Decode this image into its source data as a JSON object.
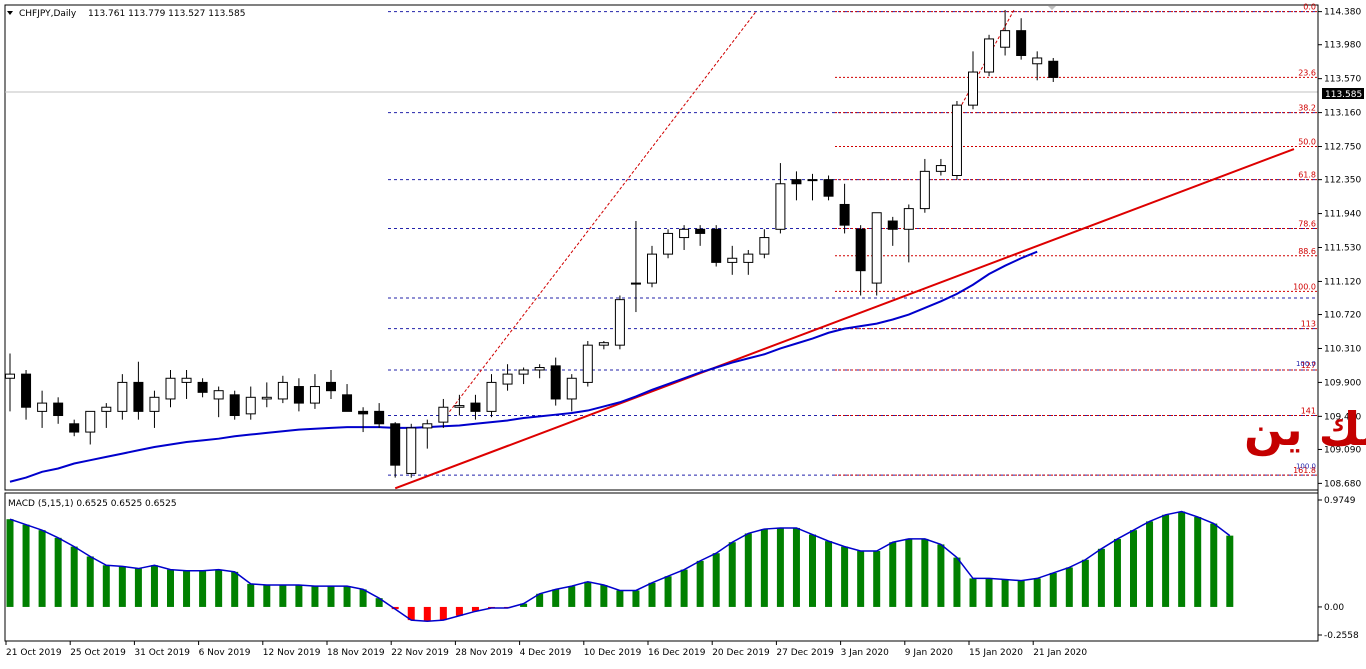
{
  "header": {
    "symbol": "CHFJPY,Daily",
    "ohlc": "113.761 113.779 113.527 113.585"
  },
  "watermark": "الفرنك ين",
  "macd_label": "MACD (5,15,1) 0.6525 0.6525 0.6525",
  "current_price_label": "113.585",
  "colors": {
    "background": "#ffffff",
    "bull_body": "#ffffff",
    "bear_body": "#000000",
    "moving_average": "#0000cc",
    "trendline": "#dd0000",
    "fib_lines": "#2222aa",
    "fib_labels": "#d00000",
    "macd_positive": "#008000",
    "macd_negative": "#ff0000",
    "macd_signal": "#0000cc"
  },
  "chart_data": [
    {
      "type": "candlestick",
      "title": "CHFJPY,Daily",
      "ylim": [
        108.6,
        114.46
      ],
      "y_ticks": [
        "114.380",
        "113.980",
        "113.570",
        "113.160",
        "112.750",
        "112.350",
        "111.940",
        "111.530",
        "111.120",
        "110.720",
        "110.310",
        "109.900",
        "109.490",
        "109.090",
        "108.680"
      ],
      "x_tick_labels": [
        "21 Oct 2019",
        "25 Oct 2019",
        "31 Oct 2019",
        "6 Nov 2019",
        "12 Nov 2019",
        "18 Nov 2019",
        "22 Nov 2019",
        "28 Nov 2019",
        "4 Dec 2019",
        "10 Dec 2019",
        "16 Dec 2019",
        "20 Dec 2019",
        "27 Dec 2019",
        "3 Jan 2020",
        "9 Jan 2020",
        "15 Jan 2020",
        "21 Jan 2020"
      ],
      "candles": [
        {
          "o": 109.95,
          "h": 110.25,
          "l": 109.55,
          "c": 110.0
        },
        {
          "o": 110.0,
          "h": 110.05,
          "l": 109.45,
          "c": 109.6
        },
        {
          "o": 109.55,
          "h": 109.8,
          "l": 109.35,
          "c": 109.65
        },
        {
          "o": 109.65,
          "h": 109.72,
          "l": 109.4,
          "c": 109.5
        },
        {
          "o": 109.4,
          "h": 109.45,
          "l": 109.25,
          "c": 109.3
        },
        {
          "o": 109.3,
          "h": 109.55,
          "l": 109.15,
          "c": 109.55
        },
        {
          "o": 109.55,
          "h": 109.65,
          "l": 109.35,
          "c": 109.6
        },
        {
          "o": 109.55,
          "h": 110.0,
          "l": 109.45,
          "c": 109.9
        },
        {
          "o": 109.9,
          "h": 110.15,
          "l": 109.45,
          "c": 109.55
        },
        {
          "o": 109.55,
          "h": 109.8,
          "l": 109.35,
          "c": 109.72
        },
        {
          "o": 109.7,
          "h": 110.05,
          "l": 109.6,
          "c": 109.95
        },
        {
          "o": 109.9,
          "h": 110.05,
          "l": 109.7,
          "c": 109.95
        },
        {
          "o": 109.9,
          "h": 109.95,
          "l": 109.72,
          "c": 109.78
        },
        {
          "o": 109.7,
          "h": 109.85,
          "l": 109.48,
          "c": 109.8
        },
        {
          "o": 109.75,
          "h": 109.8,
          "l": 109.45,
          "c": 109.5
        },
        {
          "o": 109.52,
          "h": 109.85,
          "l": 109.45,
          "c": 109.72
        },
        {
          "o": 109.7,
          "h": 109.9,
          "l": 109.6,
          "c": 109.72
        },
        {
          "o": 109.7,
          "h": 109.98,
          "l": 109.65,
          "c": 109.9
        },
        {
          "o": 109.85,
          "h": 109.95,
          "l": 109.55,
          "c": 109.65
        },
        {
          "o": 109.65,
          "h": 110.0,
          "l": 109.58,
          "c": 109.85
        },
        {
          "o": 109.9,
          "h": 110.05,
          "l": 109.7,
          "c": 109.8
        },
        {
          "o": 109.75,
          "h": 109.88,
          "l": 109.55,
          "c": 109.55
        },
        {
          "o": 109.55,
          "h": 109.6,
          "l": 109.3,
          "c": 109.52
        },
        {
          "o": 109.55,
          "h": 109.65,
          "l": 109.35,
          "c": 109.4
        },
        {
          "o": 109.4,
          "h": 109.42,
          "l": 108.75,
          "c": 108.9
        },
        {
          "o": 108.8,
          "h": 109.4,
          "l": 108.75,
          "c": 109.35
        },
        {
          "o": 109.35,
          "h": 109.45,
          "l": 109.1,
          "c": 109.4
        },
        {
          "o": 109.42,
          "h": 109.7,
          "l": 109.35,
          "c": 109.6
        },
        {
          "o": 109.6,
          "h": 109.75,
          "l": 109.5,
          "c": 109.62
        },
        {
          "o": 109.65,
          "h": 109.75,
          "l": 109.45,
          "c": 109.55
        },
        {
          "o": 109.55,
          "h": 110.0,
          "l": 109.48,
          "c": 109.9
        },
        {
          "o": 109.88,
          "h": 110.12,
          "l": 109.8,
          "c": 110.0
        },
        {
          "o": 110.0,
          "h": 110.08,
          "l": 109.88,
          "c": 110.05
        },
        {
          "o": 110.05,
          "h": 110.12,
          "l": 109.95,
          "c": 110.08
        },
        {
          "o": 110.1,
          "h": 110.2,
          "l": 109.62,
          "c": 109.7
        },
        {
          "o": 109.7,
          "h": 110.0,
          "l": 109.55,
          "c": 109.95
        },
        {
          "o": 109.9,
          "h": 110.4,
          "l": 109.85,
          "c": 110.35
        },
        {
          "o": 110.35,
          "h": 110.4,
          "l": 110.3,
          "c": 110.38
        },
        {
          "o": 110.35,
          "h": 110.95,
          "l": 110.3,
          "c": 110.9
        },
        {
          "o": 111.1,
          "h": 111.85,
          "l": 110.75,
          "c": 111.1
        },
        {
          "o": 111.1,
          "h": 111.55,
          "l": 111.05,
          "c": 111.45
        },
        {
          "o": 111.45,
          "h": 111.75,
          "l": 111.4,
          "c": 111.7
        },
        {
          "o": 111.65,
          "h": 111.8,
          "l": 111.5,
          "c": 111.75
        },
        {
          "o": 111.75,
          "h": 111.8,
          "l": 111.55,
          "c": 111.7
        },
        {
          "o": 111.75,
          "h": 111.8,
          "l": 111.3,
          "c": 111.35
        },
        {
          "o": 111.35,
          "h": 111.55,
          "l": 111.2,
          "c": 111.4
        },
        {
          "o": 111.35,
          "h": 111.5,
          "l": 111.2,
          "c": 111.45
        },
        {
          "o": 111.45,
          "h": 111.75,
          "l": 111.4,
          "c": 111.65
        },
        {
          "o": 111.75,
          "h": 112.55,
          "l": 111.7,
          "c": 112.3
        },
        {
          "o": 112.35,
          "h": 112.45,
          "l": 112.1,
          "c": 112.3
        },
        {
          "o": 112.35,
          "h": 112.42,
          "l": 112.1,
          "c": 112.35
        },
        {
          "o": 112.35,
          "h": 112.4,
          "l": 112.1,
          "c": 112.15
        },
        {
          "o": 112.05,
          "h": 112.3,
          "l": 111.7,
          "c": 111.8
        },
        {
          "o": 111.75,
          "h": 111.8,
          "l": 110.95,
          "c": 111.25
        },
        {
          "o": 111.1,
          "h": 111.95,
          "l": 110.95,
          "c": 111.95
        },
        {
          "o": 111.85,
          "h": 111.9,
          "l": 111.55,
          "c": 111.75
        },
        {
          "o": 111.75,
          "h": 112.05,
          "l": 111.35,
          "c": 112.0
        },
        {
          "o": 112.0,
          "h": 112.6,
          "l": 111.95,
          "c": 112.45
        },
        {
          "o": 112.45,
          "h": 112.6,
          "l": 112.4,
          "c": 112.52
        },
        {
          "o": 112.4,
          "h": 113.3,
          "l": 112.35,
          "c": 113.25
        },
        {
          "o": 113.25,
          "h": 113.9,
          "l": 113.2,
          "c": 113.65
        },
        {
          "o": 113.65,
          "h": 114.1,
          "l": 113.6,
          "c": 114.05
        },
        {
          "o": 113.95,
          "h": 114.4,
          "l": 113.85,
          "c": 114.15
        },
        {
          "o": 114.15,
          "h": 114.3,
          "l": 113.8,
          "c": 113.85
        },
        {
          "o": 113.75,
          "h": 113.9,
          "l": 113.55,
          "c": 113.82
        },
        {
          "o": 113.78,
          "h": 113.82,
          "l": 113.53,
          "c": 113.585
        }
      ],
      "moving_average": [
        108.7,
        108.75,
        108.82,
        108.86,
        108.92,
        108.96,
        109.0,
        109.04,
        109.08,
        109.12,
        109.15,
        109.18,
        109.2,
        109.22,
        109.25,
        109.27,
        109.29,
        109.31,
        109.33,
        109.34,
        109.35,
        109.36,
        109.36,
        109.36,
        109.35,
        109.35,
        109.36,
        109.37,
        109.38,
        109.4,
        109.42,
        109.44,
        109.47,
        109.49,
        109.51,
        109.53,
        109.56,
        109.61,
        109.66,
        109.73,
        109.81,
        109.88,
        109.95,
        110.02,
        110.08,
        110.14,
        110.19,
        110.24,
        110.31,
        110.37,
        110.43,
        110.5,
        110.55,
        110.58,
        110.61,
        110.66,
        110.72,
        110.8,
        110.88,
        110.97,
        111.08,
        111.21,
        111.31,
        111.4,
        111.48
      ],
      "trendline": [
        [
          24,
          108.62
        ],
        [
          80,
          112.72
        ]
      ],
      "fibonacci": {
        "levels": [
          {
            "label": "0.0",
            "value": 114.38
          },
          {
            "label": "23.6",
            "value": 113.585
          },
          {
            "label": "38.2",
            "value": 113.16
          },
          {
            "label": "50.0",
            "value": 112.75
          },
          {
            "label": "61.8",
            "value": 112.35
          },
          {
            "label": "78.6",
            "value": 111.76
          },
          {
            "label": "88.6",
            "value": 111.43
          },
          {
            "label": "100.0",
            "value": 111.0
          },
          {
            "label": "113",
            "value": 110.55
          },
          {
            "label": "127",
            "value": 110.05
          },
          {
            "label": "141",
            "value": 109.5
          },
          {
            "label": "161.8",
            "value": 108.78
          }
        ],
        "sub_labels": [
          "100.0",
          "100.0"
        ],
        "blue_lines": [
          114.38,
          113.16,
          112.35,
          111.76,
          110.92,
          110.55,
          110.05,
          109.5,
          108.78
        ]
      }
    },
    {
      "type": "bar",
      "title": "MACD (5,15,1) 0.6525 0.6525 0.6525",
      "ylim": [
        -0.2558,
        0.9749
      ],
      "y_ticks": [
        "0.9749",
        "0.00",
        "-0.2558"
      ],
      "values": [
        0.8,
        0.75,
        0.7,
        0.63,
        0.55,
        0.46,
        0.38,
        0.37,
        0.35,
        0.38,
        0.34,
        0.33,
        0.33,
        0.34,
        0.32,
        0.21,
        0.2,
        0.2,
        0.2,
        0.19,
        0.19,
        0.19,
        0.16,
        0.08,
        -0.02,
        -0.12,
        -0.13,
        -0.12,
        -0.08,
        -0.04,
        -0.01,
        -0.01,
        0.03,
        0.12,
        0.16,
        0.19,
        0.23,
        0.2,
        0.15,
        0.15,
        0.22,
        0.28,
        0.34,
        0.42,
        0.49,
        0.59,
        0.67,
        0.71,
        0.72,
        0.72,
        0.66,
        0.6,
        0.55,
        0.51,
        0.51,
        0.59,
        0.62,
        0.62,
        0.57,
        0.45,
        0.26,
        0.26,
        0.25,
        0.24,
        0.26,
        0.31,
        0.36,
        0.43,
        0.53,
        0.62,
        0.7,
        0.78,
        0.84,
        0.87,
        0.82,
        0.76,
        0.65
      ]
    }
  ]
}
